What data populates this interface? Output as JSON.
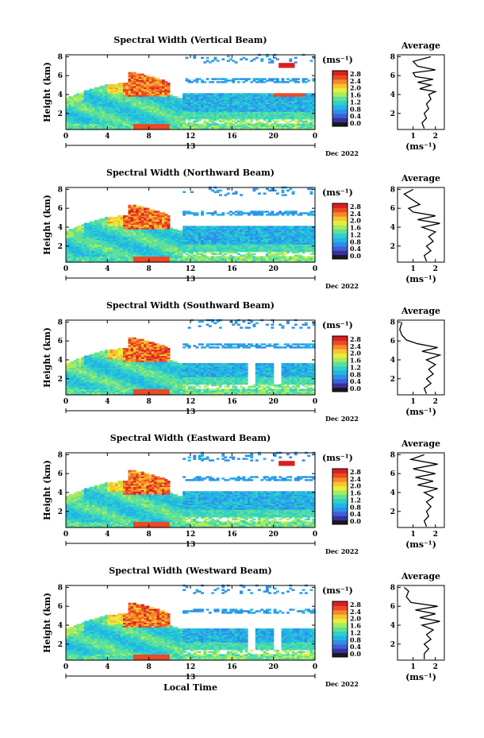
{
  "colors": {
    "colormap": [
      "#1a1a1a",
      "#3b2fa0",
      "#3e5fd6",
      "#2f8fe8",
      "#22b5e6",
      "#30d0c8",
      "#5fe09a",
      "#a6ec5e",
      "#e8ee3c",
      "#f8c530",
      "#f5892a",
      "#ea4a26",
      "#d9201f"
    ]
  },
  "chart_data": [
    {
      "type": "heatmap",
      "title": "Spectral Width (Vertical Beam)",
      "ylabel": "Height (km)",
      "xlabel": "",
      "x_ticks": [
        "0",
        "4",
        "8",
        "12",
        "16",
        "20",
        "0"
      ],
      "y_ticks": [
        "2",
        "4",
        "6",
        "8"
      ],
      "date_label": "13",
      "month_label": "Dec 2022",
      "colorbar": {
        "unit": "(ms⁻¹)",
        "ticks": [
          "2.8",
          "2.4",
          "2.0",
          "1.6",
          "1.2",
          "0.8",
          "0.4",
          "0.0"
        ]
      },
      "avg": {
        "title": "Average",
        "xlabel": "(ms⁻¹)",
        "x_ticks": [
          "1",
          "2"
        ],
        "y_ticks": [
          "2",
          "4",
          "6",
          "8"
        ],
        "profile": [
          [
            1.5,
            0.4
          ],
          [
            1.4,
            1.0
          ],
          [
            1.6,
            1.5
          ],
          [
            1.5,
            2.0
          ],
          [
            1.7,
            2.5
          ],
          [
            1.6,
            3.0
          ],
          [
            1.8,
            3.5
          ],
          [
            1.7,
            4.0
          ],
          [
            2.0,
            4.3
          ],
          [
            1.3,
            4.6
          ],
          [
            1.8,
            5.0
          ],
          [
            1.2,
            5.3
          ],
          [
            1.9,
            5.6
          ],
          [
            1.1,
            5.9
          ],
          [
            1.0,
            6.3
          ],
          [
            2.0,
            6.6
          ],
          [
            1.2,
            7.0
          ],
          [
            1.0,
            7.5
          ],
          [
            1.8,
            8.0
          ]
        ]
      },
      "xlim": [
        0,
        24
      ],
      "ylim": [
        0.3,
        8.2
      ]
    },
    {
      "type": "heatmap",
      "title": "Spectral Width (Northward Beam)",
      "ylabel": "Height (km)",
      "xlabel": "",
      "x_ticks": [
        "0",
        "4",
        "8",
        "12",
        "16",
        "20",
        "0"
      ],
      "y_ticks": [
        "2",
        "4",
        "6",
        "8"
      ],
      "date_label": "13",
      "month_label": "Dec 2022",
      "colorbar": {
        "unit": "(ms⁻¹)",
        "ticks": [
          "2.8",
          "2.4",
          "2.0",
          "1.6",
          "1.2",
          "0.8",
          "0.4",
          "0.0"
        ]
      },
      "avg": {
        "title": "Average",
        "xlabel": "(ms⁻¹)",
        "x_ticks": [
          "1",
          "2"
        ],
        "y_ticks": [
          "2",
          "4",
          "6",
          "8"
        ],
        "profile": [
          [
            1.6,
            0.4
          ],
          [
            1.5,
            1.0
          ],
          [
            1.8,
            1.5
          ],
          [
            1.6,
            2.0
          ],
          [
            1.9,
            2.5
          ],
          [
            1.7,
            3.0
          ],
          [
            2.0,
            3.5
          ],
          [
            1.4,
            4.0
          ],
          [
            2.2,
            4.4
          ],
          [
            1.2,
            4.8
          ],
          [
            2.0,
            5.2
          ],
          [
            1.0,
            5.6
          ],
          [
            0.8,
            6.0
          ],
          [
            1.3,
            6.4
          ],
          [
            0.9,
            7.0
          ],
          [
            0.6,
            7.5
          ],
          [
            1.0,
            8.0
          ]
        ]
      },
      "xlim": [
        0,
        24
      ],
      "ylim": [
        0.3,
        8.2
      ]
    },
    {
      "type": "heatmap",
      "title": "Spectral Width (Southward Beam)",
      "ylabel": "Height (km)",
      "xlabel": "",
      "x_ticks": [
        "0",
        "4",
        "8",
        "12",
        "16",
        "20",
        "0"
      ],
      "y_ticks": [
        "2",
        "4",
        "6",
        "8"
      ],
      "date_label": "13",
      "month_label": "Dec 2022",
      "colorbar": {
        "unit": "(ms⁻¹)",
        "ticks": [
          "2.8",
          "2.4",
          "2.0",
          "1.6",
          "1.2",
          "0.8",
          "0.4",
          "0.0"
        ]
      },
      "avg": {
        "title": "Average",
        "xlabel": "(ms⁻¹)",
        "x_ticks": [
          "1",
          "2"
        ],
        "y_ticks": [
          "2",
          "4",
          "6",
          "8"
        ],
        "profile": [
          [
            1.6,
            0.4
          ],
          [
            1.5,
            1.0
          ],
          [
            1.8,
            1.5
          ],
          [
            1.6,
            2.0
          ],
          [
            1.9,
            2.5
          ],
          [
            1.7,
            3.0
          ],
          [
            2.0,
            3.5
          ],
          [
            1.6,
            4.0
          ],
          [
            2.2,
            4.5
          ],
          [
            1.4,
            4.9
          ],
          [
            2.1,
            5.3
          ],
          [
            1.2,
            5.7
          ],
          [
            0.7,
            6.1
          ],
          [
            0.5,
            6.6
          ],
          [
            0.4,
            7.2
          ],
          [
            0.5,
            8.0
          ]
        ]
      },
      "xlim": [
        0,
        24
      ],
      "ylim": [
        0.3,
        8.2
      ]
    },
    {
      "type": "heatmap",
      "title": "Spectral Width (Eastward Beam)",
      "ylabel": "Height (km)",
      "xlabel": "",
      "x_ticks": [
        "0",
        "4",
        "8",
        "12",
        "16",
        "20",
        "0"
      ],
      "y_ticks": [
        "2",
        "4",
        "6",
        "8"
      ],
      "date_label": "13",
      "month_label": "Dec 2022",
      "colorbar": {
        "unit": "(ms⁻¹)",
        "ticks": [
          "2.8",
          "2.4",
          "2.0",
          "1.6",
          "1.2",
          "0.8",
          "0.4",
          "0.0"
        ]
      },
      "avg": {
        "title": "Average",
        "xlabel": "(ms⁻¹)",
        "x_ticks": [
          "1",
          "2"
        ],
        "y_ticks": [
          "2",
          "4",
          "6",
          "8"
        ],
        "profile": [
          [
            1.6,
            0.4
          ],
          [
            1.5,
            1.0
          ],
          [
            1.7,
            1.5
          ],
          [
            1.6,
            2.0
          ],
          [
            1.8,
            2.5
          ],
          [
            1.6,
            3.0
          ],
          [
            1.9,
            3.5
          ],
          [
            1.5,
            4.0
          ],
          [
            2.1,
            4.4
          ],
          [
            1.2,
            4.8
          ],
          [
            1.9,
            5.2
          ],
          [
            1.1,
            5.6
          ],
          [
            2.0,
            6.0
          ],
          [
            1.0,
            6.5
          ],
          [
            2.1,
            7.0
          ],
          [
            0.9,
            7.5
          ],
          [
            1.5,
            8.0
          ]
        ]
      },
      "xlim": [
        0,
        24
      ],
      "ylim": [
        0.3,
        8.2
      ]
    },
    {
      "type": "heatmap",
      "title": "Spectral Width (Westward Beam)",
      "ylabel": "Height (km)",
      "xlabel": "Local Time",
      "x_ticks": [
        "0",
        "4",
        "8",
        "12",
        "16",
        "20",
        "0"
      ],
      "y_ticks": [
        "2",
        "4",
        "6",
        "8"
      ],
      "date_label": "13",
      "month_label": "Dec 2022",
      "colorbar": {
        "unit": "(ms⁻¹)",
        "ticks": [
          "2.8",
          "2.4",
          "2.0",
          "1.6",
          "1.2",
          "0.8",
          "0.4",
          "0.0"
        ]
      },
      "avg": {
        "title": "Average",
        "xlabel": "(ms⁻¹)",
        "x_ticks": [
          "1",
          "2"
        ],
        "y_ticks": [
          "2",
          "4",
          "6",
          "8"
        ],
        "profile": [
          [
            1.5,
            0.4
          ],
          [
            1.5,
            1.0
          ],
          [
            1.7,
            1.5
          ],
          [
            1.5,
            2.0
          ],
          [
            1.8,
            2.5
          ],
          [
            1.6,
            3.0
          ],
          [
            1.9,
            3.5
          ],
          [
            1.4,
            4.0
          ],
          [
            2.2,
            4.4
          ],
          [
            1.3,
            4.8
          ],
          [
            2.0,
            5.2
          ],
          [
            1.1,
            5.6
          ],
          [
            2.1,
            6.0
          ],
          [
            0.9,
            6.4
          ],
          [
            0.7,
            7.0
          ],
          [
            0.8,
            7.6
          ],
          [
            0.6,
            8.0
          ]
        ]
      },
      "xlim": [
        0,
        24
      ],
      "ylim": [
        0.3,
        8.2
      ]
    }
  ]
}
